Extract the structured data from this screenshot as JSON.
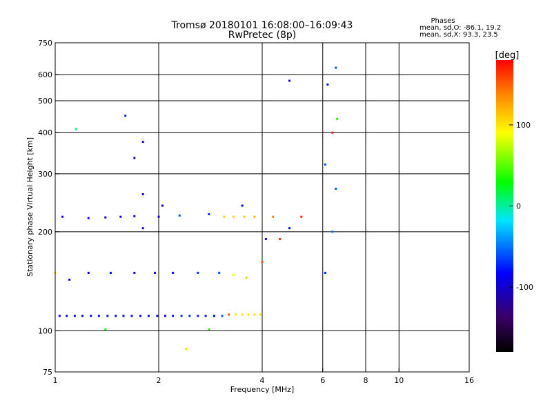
{
  "chart_data": {
    "type": "scatter",
    "title": "Tromsø 20180101 16:08:00–16:09:43",
    "subtitle": "RwPretec (8p)",
    "xlabel": "Frequency [MHz]",
    "ylabel": "Stationary phase Virtual Height [km]",
    "x_scale": "log",
    "y_scale": "log",
    "xlim": [
      1,
      16
    ],
    "ylim": [
      75,
      750
    ],
    "x_ticks": [
      1,
      2,
      4,
      6,
      8,
      10,
      16
    ],
    "x_tick_labels": [
      "1",
      "2",
      "4",
      "6",
      "8",
      "10",
      "16"
    ],
    "x_gridlines": [
      2,
      4,
      6,
      8,
      10
    ],
    "y_ticks": [
      75,
      100,
      200,
      300,
      400,
      500,
      600,
      750
    ],
    "y_tick_labels": [
      "75",
      "100",
      "200",
      "300",
      "400",
      "500",
      "600",
      "750"
    ],
    "y_gridlines": [
      100,
      200,
      300,
      400,
      500,
      600
    ],
    "grid": true,
    "stats": {
      "heading": "Phases",
      "line1": "mean, sd,O: -86.1, 19.2",
      "line2": "mean, sd,X:  93.3, 23.5"
    },
    "colorbar": {
      "label": "[deg]",
      "range": [
        -180,
        180
      ],
      "ticks": [
        100,
        0,
        -100
      ],
      "tick_labels": [
        "100",
        "0",
        "-100"
      ],
      "colors": [
        "#000000",
        "#3a0066",
        "#0000ff",
        "#00e5ff",
        "#00ff00",
        "#ffff00",
        "#ff8800",
        "#ff0000"
      ]
    },
    "points": [
      {
        "x": 1.03,
        "y": 111,
        "phase": -95
      },
      {
        "x": 1.08,
        "y": 111,
        "phase": -95
      },
      {
        "x": 1.14,
        "y": 111,
        "phase": -95
      },
      {
        "x": 1.2,
        "y": 111,
        "phase": -95
      },
      {
        "x": 1.27,
        "y": 111,
        "phase": -95
      },
      {
        "x": 1.34,
        "y": 111,
        "phase": -95
      },
      {
        "x": 1.42,
        "y": 111,
        "phase": -95
      },
      {
        "x": 1.5,
        "y": 111,
        "phase": -95
      },
      {
        "x": 1.58,
        "y": 111,
        "phase": -95
      },
      {
        "x": 1.67,
        "y": 111,
        "phase": -95
      },
      {
        "x": 1.77,
        "y": 111,
        "phase": -95
      },
      {
        "x": 1.87,
        "y": 111,
        "phase": -95
      },
      {
        "x": 1.98,
        "y": 111,
        "phase": -95
      },
      {
        "x": 2.09,
        "y": 111,
        "phase": -90
      },
      {
        "x": 2.2,
        "y": 111,
        "phase": -80
      },
      {
        "x": 2.33,
        "y": 111,
        "phase": -70
      },
      {
        "x": 2.46,
        "y": 111,
        "phase": -70
      },
      {
        "x": 2.6,
        "y": 111,
        "phase": -75
      },
      {
        "x": 2.74,
        "y": 111,
        "phase": -80
      },
      {
        "x": 2.9,
        "y": 111,
        "phase": -85
      },
      {
        "x": 3.06,
        "y": 111,
        "phase": -60
      },
      {
        "x": 3.2,
        "y": 112,
        "phase": 150
      },
      {
        "x": 3.35,
        "y": 112,
        "phase": 100
      },
      {
        "x": 3.5,
        "y": 112,
        "phase": 100
      },
      {
        "x": 3.65,
        "y": 112,
        "phase": 100
      },
      {
        "x": 3.8,
        "y": 112,
        "phase": 100
      },
      {
        "x": 3.95,
        "y": 112,
        "phase": 100
      },
      {
        "x": 1.05,
        "y": 222,
        "phase": -95
      },
      {
        "x": 1.25,
        "y": 220,
        "phase": -95
      },
      {
        "x": 1.4,
        "y": 221,
        "phase": -95
      },
      {
        "x": 1.55,
        "y": 222,
        "phase": -95
      },
      {
        "x": 1.7,
        "y": 223,
        "phase": -95
      },
      {
        "x": 2.0,
        "y": 222,
        "phase": -95
      },
      {
        "x": 2.3,
        "y": 224,
        "phase": -60
      },
      {
        "x": 2.8,
        "y": 226,
        "phase": -70
      },
      {
        "x": 3.1,
        "y": 222,
        "phase": 110
      },
      {
        "x": 3.3,
        "y": 222,
        "phase": 110
      },
      {
        "x": 3.55,
        "y": 222,
        "phase": 110
      },
      {
        "x": 3.8,
        "y": 222,
        "phase": 120
      },
      {
        "x": 4.3,
        "y": 222,
        "phase": 140
      },
      {
        "x": 5.2,
        "y": 222,
        "phase": 170
      },
      {
        "x": 1.0,
        "y": 150,
        "phase": 100
      },
      {
        "x": 1.1,
        "y": 143,
        "phase": -95
      },
      {
        "x": 1.25,
        "y": 150,
        "phase": -90
      },
      {
        "x": 1.45,
        "y": 150,
        "phase": -80
      },
      {
        "x": 1.7,
        "y": 150,
        "phase": -100
      },
      {
        "x": 1.95,
        "y": 150,
        "phase": -100
      },
      {
        "x": 2.2,
        "y": 150,
        "phase": -90
      },
      {
        "x": 2.6,
        "y": 150,
        "phase": -70
      },
      {
        "x": 3.0,
        "y": 150,
        "phase": -60
      },
      {
        "x": 3.3,
        "y": 148,
        "phase": 90
      },
      {
        "x": 3.6,
        "y": 145,
        "phase": 110
      },
      {
        "x": 4.0,
        "y": 162,
        "phase": 150
      },
      {
        "x": 4.5,
        "y": 190,
        "phase": 160
      },
      {
        "x": 1.8,
        "y": 205,
        "phase": -100
      },
      {
        "x": 1.8,
        "y": 260,
        "phase": -95
      },
      {
        "x": 2.05,
        "y": 240,
        "phase": -100
      },
      {
        "x": 3.5,
        "y": 240,
        "phase": -85
      },
      {
        "x": 4.1,
        "y": 190,
        "phase": -80
      },
      {
        "x": 4.8,
        "y": 205,
        "phase": -80
      },
      {
        "x": 1.15,
        "y": 410,
        "phase": 10
      },
      {
        "x": 1.6,
        "y": 450,
        "phase": -75
      },
      {
        "x": 1.8,
        "y": 375,
        "phase": -100
      },
      {
        "x": 1.7,
        "y": 335,
        "phase": -110
      },
      {
        "x": 2.4,
        "y": 88,
        "phase": 100
      },
      {
        "x": 2.8,
        "y": 101,
        "phase": 40
      },
      {
        "x": 1.4,
        "y": 101,
        "phase": 30
      },
      {
        "x": 4.8,
        "y": 575,
        "phase": -95
      },
      {
        "x": 6.2,
        "y": 560,
        "phase": -80
      },
      {
        "x": 6.55,
        "y": 630,
        "phase": -60
      },
      {
        "x": 6.4,
        "y": 400,
        "phase": 170
      },
      {
        "x": 6.1,
        "y": 320,
        "phase": -60
      },
      {
        "x": 6.55,
        "y": 270,
        "phase": -60
      },
      {
        "x": 6.4,
        "y": 200,
        "phase": -50
      },
      {
        "x": 6.1,
        "y": 150,
        "phase": -70
      },
      {
        "x": 6.6,
        "y": 440,
        "phase": 40
      }
    ]
  }
}
